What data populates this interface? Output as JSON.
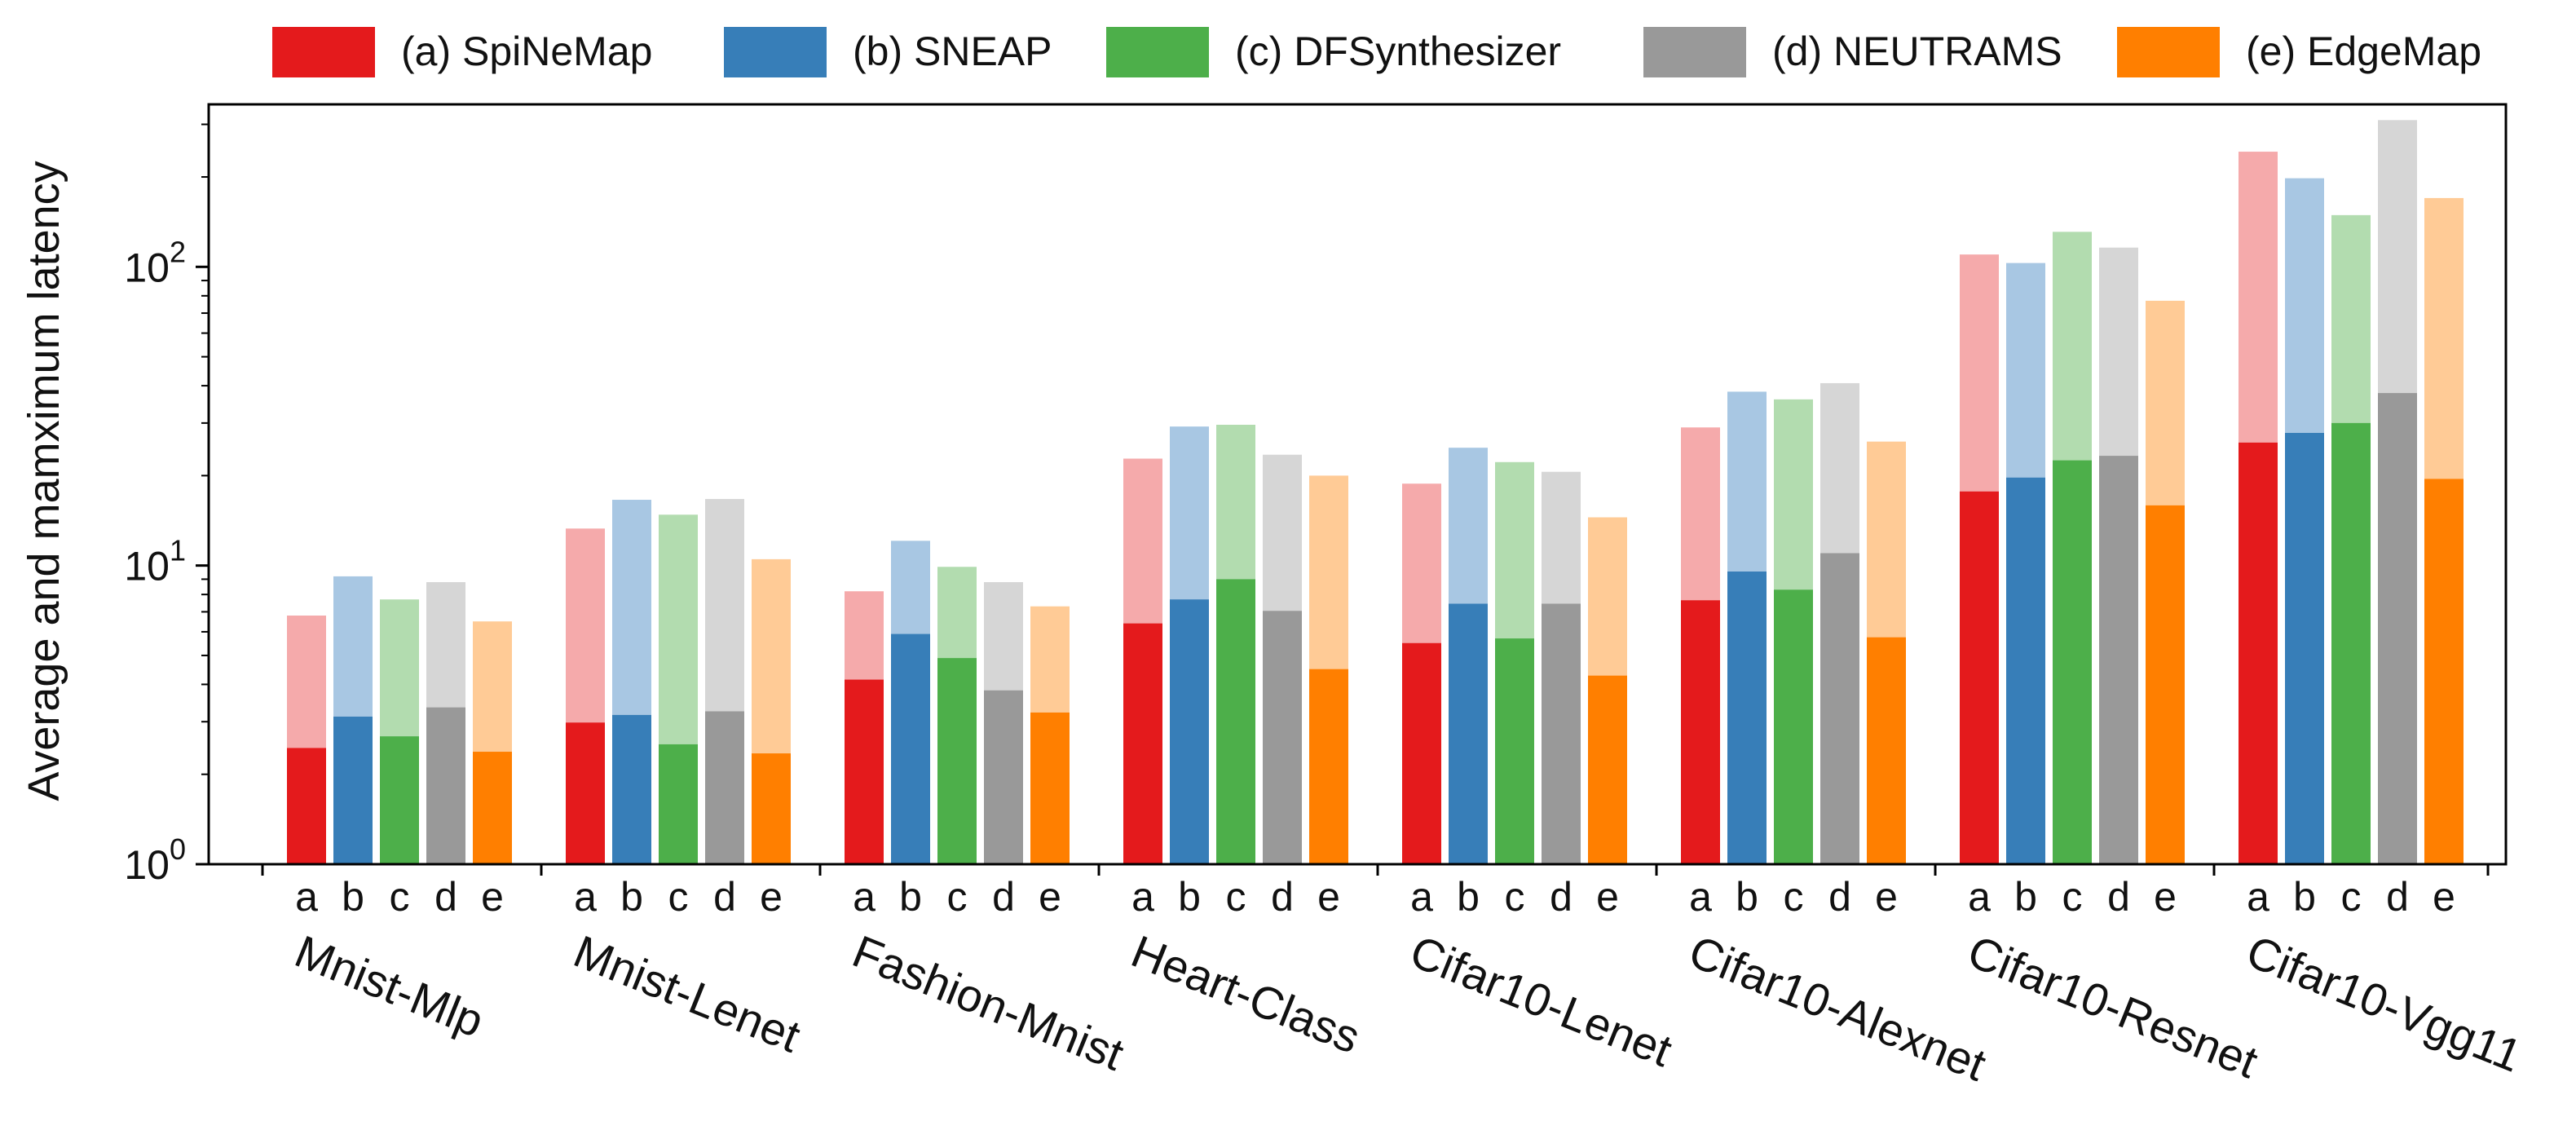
{
  "chart_data": {
    "type": "bar",
    "scale": "log",
    "ylabel": "Average and mamximum latency",
    "xlabel": "",
    "ylim": [
      1,
      350
    ],
    "yticks": [
      {
        "value": 1,
        "base": "10",
        "exp": "0"
      },
      {
        "value": 10,
        "base": "10",
        "exp": "1"
      },
      {
        "value": 100,
        "base": "10",
        "exp": "2"
      }
    ],
    "legend_position": "top",
    "grid": false,
    "categories": [
      "Mnist-Mlp",
      "Mnist-Lenet",
      "Fashion-Mnist",
      "Heart-Class",
      "Cifar10-Lenet",
      "Cifar10-Alexnet",
      "Cifar10-Resnet",
      "Cifar10-Vgg11"
    ],
    "sub_labels": [
      "a",
      "b",
      "c",
      "d",
      "e"
    ],
    "series": [
      {
        "name": "(a) SpiNeMap",
        "color": "#e41a1c",
        "light_color": "#f5aaab",
        "average": [
          2.45,
          2.98,
          4.15,
          6.4,
          5.5,
          7.65,
          17.7,
          25.8
        ],
        "maximum": [
          6.8,
          13.3,
          8.2,
          22.8,
          18.8,
          29.0,
          110,
          243
        ]
      },
      {
        "name": "(b) SNEAP",
        "color": "#377eb8",
        "light_color": "#a8c7e3",
        "average": [
          3.12,
          3.16,
          5.9,
          7.7,
          7.45,
          9.55,
          19.7,
          27.8
        ],
        "maximum": [
          9.2,
          16.6,
          12.1,
          29.2,
          24.8,
          38.2,
          103,
          198
        ]
      },
      {
        "name": "(c) DFSynthesizer",
        "color": "#4daf4a",
        "light_color": "#b2dcaf",
        "average": [
          2.68,
          2.52,
          4.9,
          9.0,
          5.7,
          8.3,
          22.5,
          30.0
        ],
        "maximum": [
          7.7,
          14.8,
          9.9,
          29.6,
          22.2,
          36.0,
          131,
          149
        ]
      },
      {
        "name": "(d) NEUTRAMS",
        "color": "#999999",
        "light_color": "#d6d6d6",
        "average": [
          3.35,
          3.25,
          3.82,
          7.05,
          7.45,
          11.0,
          23.3,
          37.8
        ],
        "maximum": [
          8.8,
          16.7,
          8.8,
          23.5,
          20.6,
          40.8,
          116,
          310
        ]
      },
      {
        "name": "(e) EdgeMap",
        "color": "#ff7f00",
        "light_color": "#ffcb96",
        "average": [
          2.38,
          2.35,
          3.22,
          4.5,
          4.28,
          5.75,
          15.9,
          19.5
        ],
        "maximum": [
          6.5,
          10.5,
          7.3,
          20.0,
          14.5,
          26.0,
          77,
          170
        ]
      }
    ]
  }
}
